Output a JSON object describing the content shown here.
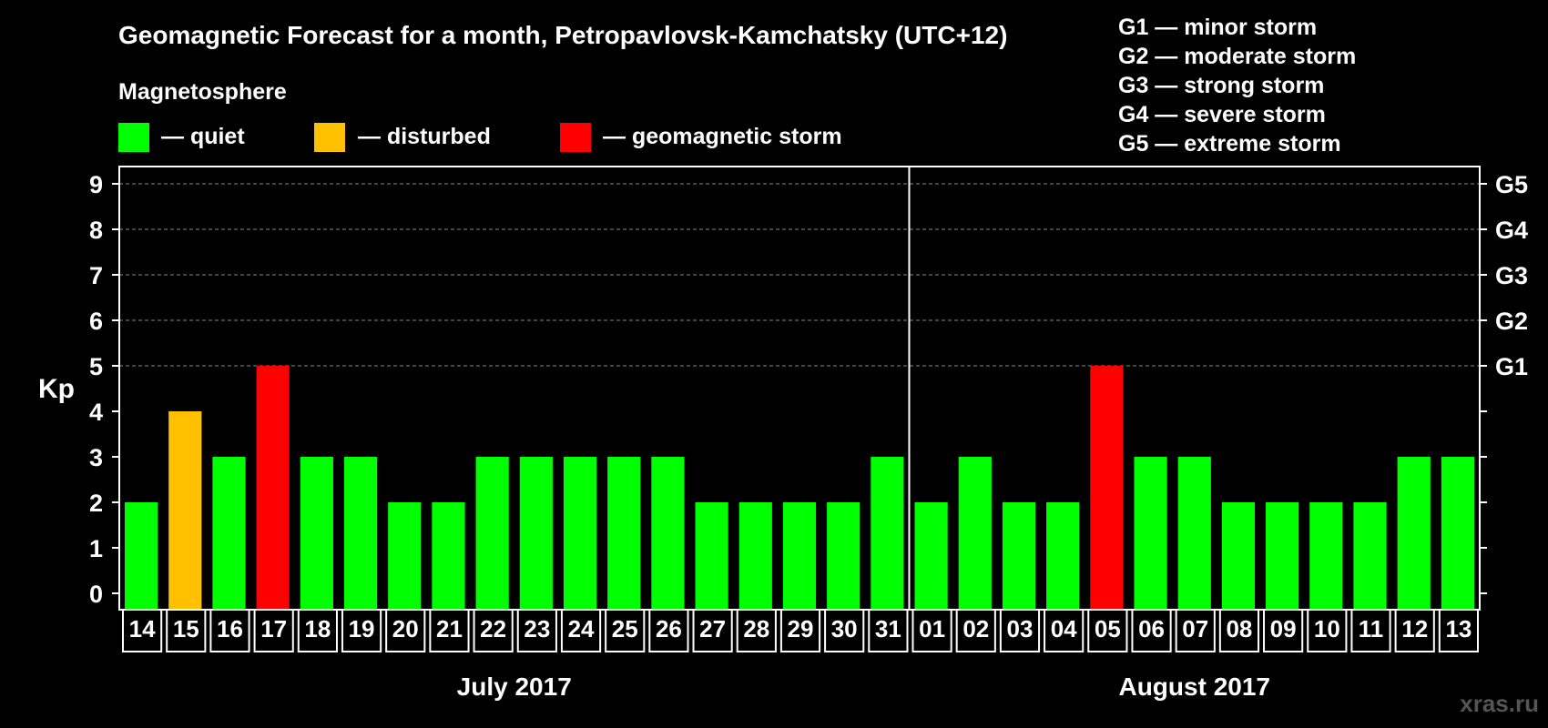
{
  "header": {
    "title": "Geomagnetic Forecast for a month, Petropavlovsk-Kamchatsky (UTC+12)",
    "magnetosphere_label": "Magnetosphere"
  },
  "legend": {
    "items": [
      {
        "label": "— quiet",
        "color": "#00ff00"
      },
      {
        "label": "— disturbed",
        "color": "#ffc000"
      },
      {
        "label": "— geomagnetic storm",
        "color": "#ff0000"
      }
    ]
  },
  "storm_scale": [
    "G1 — minor storm",
    "G2 — moderate storm",
    "G3 — strong storm",
    "G4 — severe storm",
    "G5 — extreme storm"
  ],
  "watermark": "xras.ru",
  "chart_data": {
    "type": "bar",
    "title": "Geomagnetic Forecast for a month, Petropavlovsk-Kamchatsky (UTC+12)",
    "ylabel": "Kp",
    "xlabel": "",
    "ylim": [
      0,
      9
    ],
    "yticks": [
      "0",
      "1",
      "2",
      "3",
      "4",
      "5",
      "6",
      "7",
      "8",
      "9"
    ],
    "right_ticks": [
      {
        "kp": 5,
        "label": "G1"
      },
      {
        "kp": 6,
        "label": "G2"
      },
      {
        "kp": 7,
        "label": "G3"
      },
      {
        "kp": 8,
        "label": "G4"
      },
      {
        "kp": 9,
        "label": "G5"
      }
    ],
    "gridlines": "dashed, Kp 5-9",
    "categories": [
      "14",
      "15",
      "16",
      "17",
      "18",
      "19",
      "20",
      "21",
      "22",
      "23",
      "24",
      "25",
      "26",
      "27",
      "28",
      "29",
      "30",
      "31",
      "01",
      "02",
      "03",
      "04",
      "05",
      "06",
      "07",
      "08",
      "09",
      "10",
      "11",
      "12",
      "13"
    ],
    "values": [
      2,
      4,
      3,
      5,
      3,
      3,
      2,
      2,
      3,
      3,
      3,
      3,
      3,
      2,
      2,
      2,
      2,
      3,
      2,
      3,
      2,
      2,
      5,
      3,
      3,
      2,
      2,
      2,
      2,
      3,
      3
    ],
    "bar_colors": {
      "quiet": "#00ff00",
      "disturbed": "#ffc000",
      "storm": "#ff0000"
    },
    "months": [
      {
        "label": "July 2017",
        "start": 0,
        "count": 18
      },
      {
        "label": "August 2017",
        "start": 18,
        "count": 13
      }
    ]
  }
}
